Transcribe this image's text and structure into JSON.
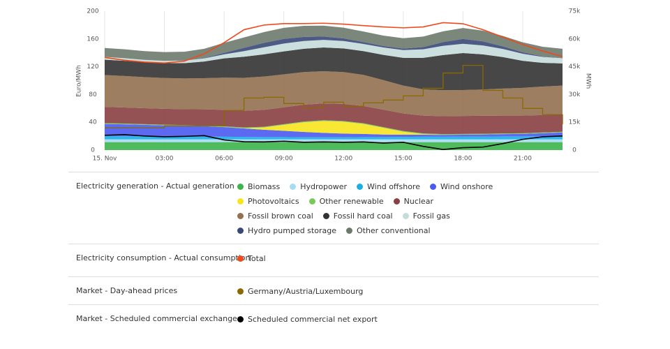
{
  "chart_data": {
    "type": "area",
    "x": [
      0,
      1,
      2,
      3,
      4,
      5,
      6,
      7,
      8,
      9,
      10,
      11,
      12,
      13,
      14,
      15,
      16,
      17,
      18,
      19,
      20,
      21,
      22,
      23
    ],
    "xlim": [
      0,
      23
    ],
    "xticks": [
      {
        "value": 0,
        "label": "15. Nov"
      },
      {
        "value": 3,
        "label": "03:00"
      },
      {
        "value": 6,
        "label": "06:00"
      },
      {
        "value": 9,
        "label": "09:00"
      },
      {
        "value": 12,
        "label": "12:00"
      },
      {
        "value": 15,
        "label": "15:00"
      },
      {
        "value": 18,
        "label": "18:00"
      },
      {
        "value": 21,
        "label": "21:00"
      }
    ],
    "ylabel": "Euro/MWh",
    "ylim": [
      0,
      200
    ],
    "yticks": [
      0,
      40,
      80,
      120,
      160,
      200
    ],
    "y2label": "MWh",
    "y2lim": [
      0,
      75000
    ],
    "y2ticks": [
      0,
      {
        "value": 15000,
        "label": "15k"
      },
      {
        "value": 30000,
        "label": "30k"
      },
      {
        "value": 45000,
        "label": "45k"
      },
      {
        "value": 60000,
        "label": "60k"
      },
      {
        "value": 75000,
        "label": "75k"
      }
    ],
    "grid": "x",
    "groups": [
      {
        "title": "Electricity generation - Actual generation",
        "series": [
          {
            "name": "Biomass",
            "type": "area",
            "axis": "y2",
            "color": "#3cb44a",
            "values": [
              4300,
              4300,
              4300,
              4300,
              4300,
              4300,
              4300,
              4300,
              4300,
              4300,
              4300,
              4300,
              4300,
              4300,
              4300,
              4300,
              4300,
              4300,
              4300,
              4300,
              4300,
              4300,
              4300,
              4300
            ]
          },
          {
            "name": "Hydropower",
            "type": "area",
            "axis": "y2",
            "color": "#a6dcf2",
            "values": [
              1500,
              1500,
              1500,
              1500,
              1500,
              1500,
              1500,
              1500,
              1500,
              1500,
              1500,
              1500,
              1500,
              1500,
              1500,
              1500,
              1500,
              1500,
              1500,
              1500,
              1500,
              1500,
              1500,
              1500
            ]
          },
          {
            "name": "Wind offshore",
            "type": "area",
            "axis": "y2",
            "color": "#1aaee6",
            "values": [
              1800,
              1800,
              1700,
              1600,
              1500,
              1500,
              1400,
              1300,
              1200,
              1200,
              1100,
              1100,
              1100,
              1200,
              1200,
              1300,
              1400,
              1400,
              1500,
              1500,
              1600,
              1600,
              1700,
              1700
            ]
          },
          {
            "name": "Wind onshore",
            "type": "area",
            "axis": "y2",
            "color": "#4a5af0",
            "values": [
              6500,
              6300,
              6100,
              5900,
              5800,
              5600,
              5200,
              4600,
              4000,
              3400,
              2900,
              2400,
              2000,
              1700,
              1400,
              1200,
              1100,
              1000,
              1000,
              1100,
              1200,
              1300,
              1600,
              2000
            ]
          },
          {
            "name": "Photovoltaics",
            "type": "area",
            "axis": "y2",
            "color": "#f7e51e",
            "values": [
              0,
              0,
              0,
              0,
              0,
              0,
              0,
              100,
              1200,
              3200,
              5200,
              6400,
              6400,
              5400,
              3600,
              1600,
              300,
              0,
              0,
              0,
              0,
              0,
              0,
              0
            ]
          },
          {
            "name": "Other renewable",
            "type": "area",
            "axis": "y2",
            "color": "#78c85a",
            "values": [
              400,
              400,
              400,
              400,
              400,
              400,
              400,
              400,
              400,
              400,
              400,
              400,
              400,
              400,
              400,
              400,
              400,
              400,
              400,
              400,
              400,
              400,
              400,
              400
            ]
          },
          {
            "name": "Nuclear",
            "type": "area",
            "axis": "y2",
            "color": "#8a3f41",
            "values": [
              8800,
              8700,
              8600,
              8600,
              8600,
              8700,
              8900,
              9000,
              9100,
              9100,
              9100,
              9100,
              9200,
              9300,
              9400,
              9500,
              9600,
              9700,
              9700,
              9700,
              9600,
              9500,
              9400,
              9300
            ]
          },
          {
            "name": "Fossil brown coal",
            "type": "area",
            "axis": "y2",
            "color": "#94704f",
            "values": [
              17200,
              17000,
              16800,
              16600,
              16600,
              16800,
              17400,
              17800,
              18000,
              17800,
              17600,
              17400,
              17200,
              16800,
              16000,
              15000,
              14200,
              14000,
              14000,
              14200,
              14600,
              15000,
              15400,
              15600
            ]
          },
          {
            "name": "Fossil hard coal",
            "type": "area",
            "axis": "y2",
            "color": "#333333",
            "values": [
              8300,
              8200,
              8000,
              8000,
              8200,
              9000,
              10400,
              11400,
              12000,
              12400,
              12600,
              12800,
              12800,
              12800,
              13600,
              15000,
              17000,
              19000,
              20000,
              19000,
              17000,
              14600,
              12800,
              12000
            ]
          },
          {
            "name": "Fossil gas",
            "type": "area",
            "axis": "y2",
            "color": "#c6dbdb",
            "values": [
              1500,
              1400,
              1300,
              1300,
              1400,
              1700,
              2200,
              3000,
              3800,
              4200,
              4200,
              4100,
              4000,
              3900,
              4000,
              4200,
              4600,
              5000,
              5000,
              4800,
              4400,
              3800,
              3200,
              2800
            ]
          },
          {
            "name": "Hydro pumped storage",
            "type": "area",
            "axis": "y2",
            "color": "#3a4878",
            "values": [
              0,
              0,
              0,
              0,
              0,
              200,
              800,
              1800,
              2400,
              2500,
              2200,
              1800,
              1400,
              1000,
              800,
              800,
              1200,
              2000,
              2600,
              2200,
              1400,
              800,
              300,
              100
            ]
          },
          {
            "name": "Other conventional",
            "type": "area",
            "axis": "y2",
            "color": "#6c7a6c",
            "values": [
              4800,
              4800,
              4700,
              4700,
              4800,
              5000,
              5400,
              5600,
              5800,
              6000,
              6000,
              5900,
              5800,
              5700,
              5600,
              5600,
              5700,
              5800,
              5900,
              5800,
              5600,
              5400,
              5200,
              5000
            ]
          }
        ]
      },
      {
        "title": "Electricity consumption - Actual consumption",
        "series": [
          {
            "name": "Total",
            "type": "line",
            "axis": "y2",
            "color": "#ee4a1c",
            "values": [
              50000,
              48500,
              47500,
              47000,
              48000,
              52000,
              58000,
              65000,
              67500,
              68300,
              68300,
              68500,
              68000,
              67200,
              66500,
              66000,
              66500,
              68800,
              68200,
              65000,
              61000,
              57000,
              53500,
              50500
            ]
          }
        ]
      },
      {
        "title": "Market - Day-ahead prices",
        "series": [
          {
            "name": "Germany/Austria/Luxembourg",
            "type": "step",
            "axis": "y",
            "color": "#8a6a00",
            "values": [
              32,
              32,
              32,
              35,
              35,
              35,
              57,
              75,
              76,
              67,
              61,
              69,
              63,
              68,
              72,
              78,
              89,
              111,
              122,
              86,
              75,
              60,
              51,
              37
            ]
          }
        ]
      },
      {
        "title": "Market - Scheduled commercial exchanges",
        "series": [
          {
            "name": "Scheduled commercial net export",
            "type": "line",
            "axis": "y2",
            "color": "#000000",
            "values": [
              8000,
              8300,
              7600,
              7200,
              7400,
              7800,
              5500,
              4500,
              4400,
              4800,
              4200,
              4400,
              4200,
              4400,
              3800,
              4200,
              2000,
              300,
              1300,
              1600,
              3500,
              5800,
              7200,
              7600
            ]
          }
        ]
      }
    ]
  }
}
